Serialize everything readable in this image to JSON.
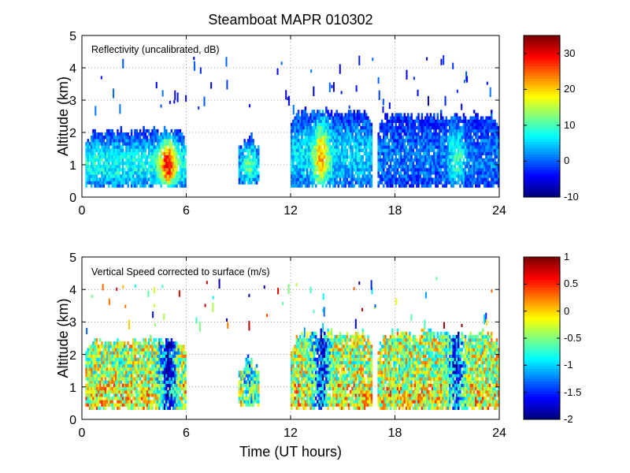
{
  "chart_data": {
    "title": "Steamboat MAPR 010302",
    "xlabel": "Time (UT hours)",
    "panels": [
      {
        "type": "heatmap",
        "label": "Reflectivity (uncalibrated, dB)",
        "ylabel": "Altitude (km)",
        "xlim": [
          0,
          24
        ],
        "ylim": [
          0,
          5
        ],
        "xticks": [
          "0",
          "6",
          "12",
          "18",
          "24"
        ],
        "yticks": [
          "0",
          "1",
          "2",
          "3",
          "4",
          "5"
        ],
        "grid": "dotted",
        "colorbar": {
          "min": -10,
          "max": 35,
          "ticks": [
            "-10",
            "0",
            "10",
            "20",
            "30"
          ],
          "colormap": "jet"
        },
        "echo_segments": [
          {
            "t_start": 0.2,
            "t_end": 6.0,
            "alt_base": 0.3,
            "alt_top": 2.0,
            "peak_value": 30,
            "peak_time": 4.9
          },
          {
            "t_start": 9.0,
            "t_end": 10.2,
            "alt_base": 0.4,
            "alt_top": 1.8,
            "peak_value": 12,
            "peak_time": 9.6
          },
          {
            "t_start": 12.0,
            "t_end": 16.7,
            "alt_base": 0.3,
            "alt_top": 2.6,
            "peak_value": 22,
            "peak_time": 13.7
          },
          {
            "t_start": 17.0,
            "t_end": 24.0,
            "alt_base": 0.3,
            "alt_top": 2.5,
            "peak_value": 10,
            "peak_time": 21.5
          }
        ]
      },
      {
        "type": "heatmap",
        "label": "Vertical Speed corrected to surface (m/s)",
        "ylabel": "Altitude (km)",
        "xlim": [
          0,
          24
        ],
        "ylim": [
          0,
          5
        ],
        "xticks": [
          "0",
          "6",
          "12",
          "18",
          "24"
        ],
        "yticks": [
          "0",
          "1",
          "2",
          "3",
          "4",
          "5"
        ],
        "grid": "dotted",
        "colorbar": {
          "min": -2,
          "max": 1,
          "ticks": [
            "-2",
            "-1.5",
            "-1",
            "-0.5",
            "0",
            "0.5",
            "1"
          ],
          "colormap": "jet"
        },
        "echo_segments": [
          {
            "t_start": 0.2,
            "t_end": 6.0,
            "alt_base": 0.3,
            "alt_top": 2.4,
            "peak_value": -1.3,
            "peak_time": 4.9
          },
          {
            "t_start": 9.0,
            "t_end": 10.2,
            "alt_base": 0.4,
            "alt_top": 1.8,
            "peak_value": -0.6,
            "peak_time": 9.6
          },
          {
            "t_start": 12.0,
            "t_end": 16.7,
            "alt_base": 0.3,
            "alt_top": 2.6,
            "peak_value": -1.2,
            "peak_time": 13.7
          },
          {
            "t_start": 17.0,
            "t_end": 24.0,
            "alt_base": 0.3,
            "alt_top": 2.6,
            "peak_value": -1.1,
            "peak_time": 21.5
          }
        ]
      }
    ]
  }
}
